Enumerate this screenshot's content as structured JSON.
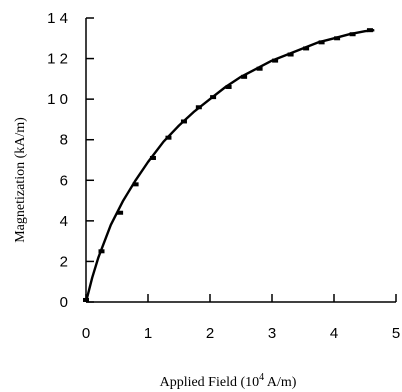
{
  "chart_data": {
    "type": "line",
    "title": "",
    "xlabel": "Applied Field  (10",
    "xlabel_sup": "4",
    "xlabel_tail": " A/m)",
    "ylabel": "Magnetization (kA/m)",
    "xlim": [
      0,
      5
    ],
    "ylim": [
      0,
      14
    ],
    "x_ticks": [
      "0",
      "1",
      "2",
      "3",
      "4",
      "5"
    ],
    "y_ticks": [
      "0",
      "2",
      "4",
      "6",
      "8",
      "1 0",
      "1 2",
      "1 4"
    ],
    "grid": false,
    "series": [
      {
        "style": "markers",
        "x": [
          0.0,
          0.25,
          0.55,
          0.8,
          1.08,
          1.33,
          1.58,
          1.82,
          2.05,
          2.3,
          2.55,
          2.8,
          3.05,
          3.3,
          3.55,
          3.8,
          4.05,
          4.3,
          4.58
        ],
        "y": [
          0.1,
          2.5,
          4.4,
          5.8,
          7.1,
          8.1,
          8.9,
          9.6,
          10.1,
          10.6,
          11.1,
          11.5,
          11.9,
          12.2,
          12.5,
          12.8,
          13.0,
          13.2,
          13.4
        ]
      },
      {
        "style": "line",
        "x": [
          0.0,
          0.1,
          0.2,
          0.4,
          0.6,
          0.8,
          1.0,
          1.25,
          1.5,
          1.75,
          2.0,
          2.25,
          2.5,
          2.75,
          3.0,
          3.25,
          3.5,
          3.75,
          4.0,
          4.25,
          4.5,
          4.65
        ],
        "y": [
          0.0,
          1.2,
          2.2,
          3.8,
          5.0,
          6.0,
          6.9,
          7.9,
          8.7,
          9.4,
          10.0,
          10.6,
          11.1,
          11.5,
          11.9,
          12.2,
          12.5,
          12.8,
          13.0,
          13.2,
          13.35,
          13.4
        ]
      }
    ]
  }
}
